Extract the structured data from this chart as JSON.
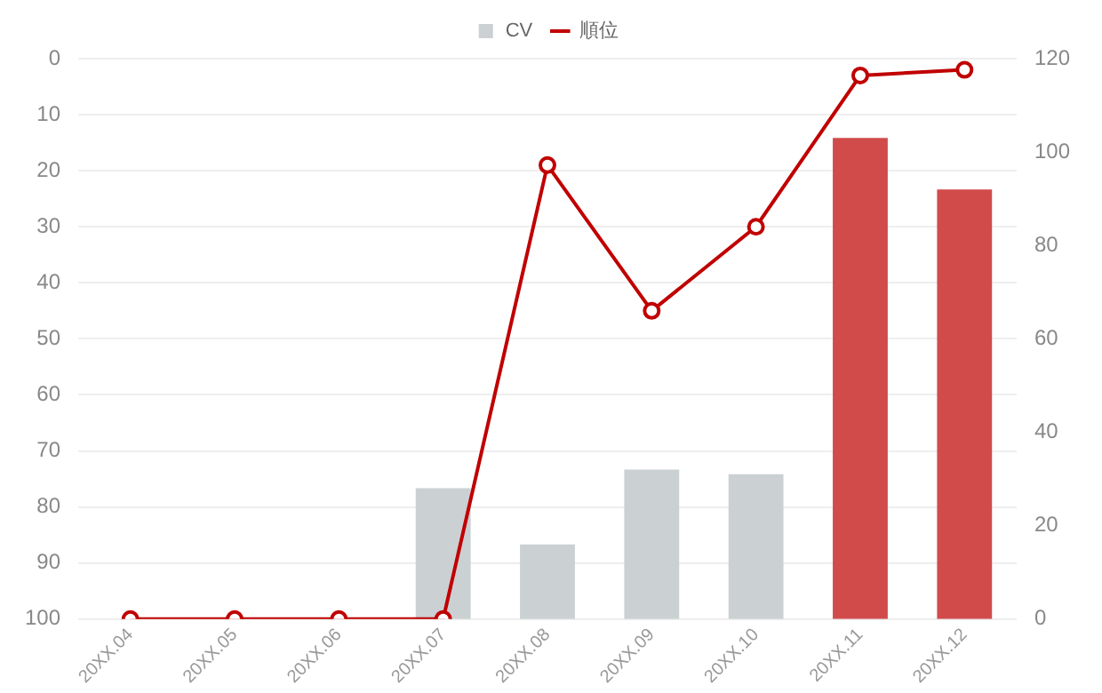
{
  "chart_data": {
    "type": "bar",
    "categories": [
      "20XX.04",
      "20XX.05",
      "20XX.06",
      "20XX.07",
      "20XX.08",
      "20XX.09",
      "20XX.10",
      "20XX.11",
      "20XX.12"
    ],
    "series": [
      {
        "name": "CV",
        "axis": "y2",
        "color": "#cbd0d3",
        "colors": [
          "#cbd0d3",
          "#cbd0d3",
          "#cbd0d3",
          "#cbd0d3",
          "#cbd0d3",
          "#cbd0d3",
          "#cbd0d3",
          "#d24b4b",
          "#d24b4b"
        ],
        "values": [
          0,
          0,
          0,
          28,
          16,
          32,
          31,
          103,
          92
        ]
      },
      {
        "name": "順位",
        "type": "line",
        "color": "#c00000",
        "values": [
          100,
          100,
          100,
          100,
          19,
          45,
          30,
          3,
          2
        ]
      }
    ],
    "ylim": [
      100,
      0
    ],
    "yticks": [
      0,
      10,
      20,
      30,
      40,
      50,
      60,
      70,
      80,
      90,
      100
    ],
    "y2lim": [
      0,
      120
    ],
    "y2ticks": [
      0,
      20,
      40,
      60,
      80,
      100,
      120
    ],
    "grid": "y",
    "legend": "top",
    "marker": "circle"
  }
}
